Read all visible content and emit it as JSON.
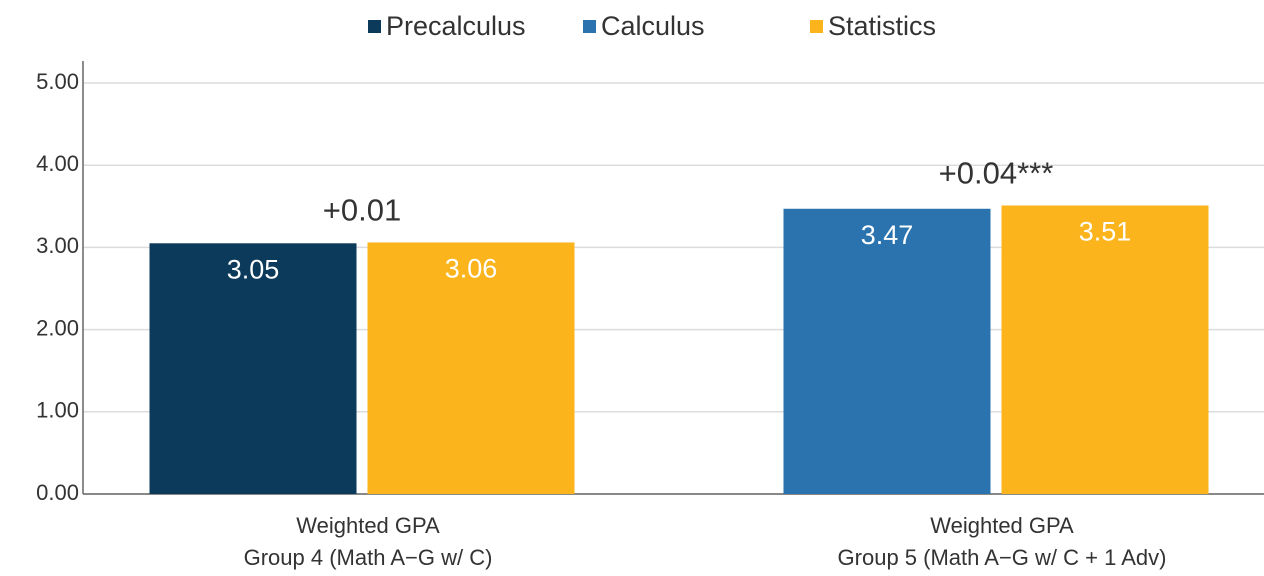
{
  "chart_data": {
    "type": "bar",
    "categories": [
      [
        "Weighted GPA",
        "Group 4 (Math A−G w/ C)"
      ],
      [
        "Weighted GPA",
        "Group 5 (Math A−G w/ C + 1 Adv)"
      ]
    ],
    "series": [
      {
        "name": "Precalculus",
        "color": "#0b3a5b",
        "values": [
          3.05,
          null
        ]
      },
      {
        "name": "Calculus",
        "color": "#2a73ae",
        "values": [
          null,
          3.47
        ]
      },
      {
        "name": "Statistics",
        "color": "#fbb41b",
        "values": [
          3.06,
          3.51
        ]
      }
    ],
    "annotations": [
      "+0.01",
      "+0.04***"
    ],
    "ylim": [
      0,
      5
    ],
    "yticks": [
      {
        "value": 0,
        "label": "0.00"
      },
      {
        "value": 1,
        "label": "1.00"
      },
      {
        "value": 2,
        "label": "2.00"
      },
      {
        "value": 3,
        "label": "3.00"
      },
      {
        "value": 4,
        "label": "4.00"
      },
      {
        "value": 5,
        "label": "5.00"
      }
    ],
    "grid": true,
    "legend": "top"
  }
}
